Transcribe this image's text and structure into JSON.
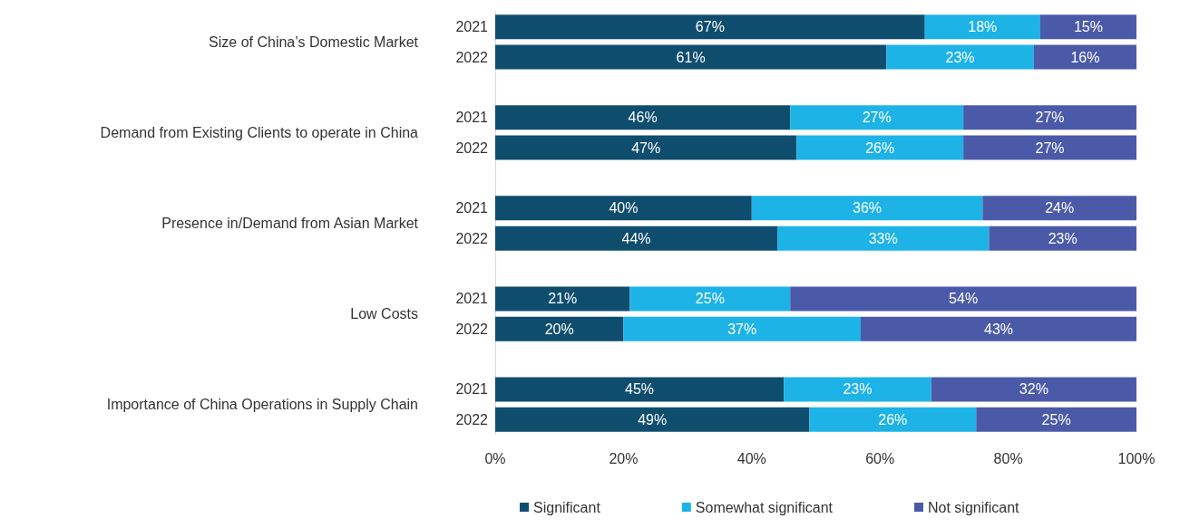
{
  "chart_data": {
    "type": "bar",
    "orientation": "horizontal",
    "stacked": true,
    "categories": [
      "2021",
      "2022",
      null,
      "2021",
      "2022",
      null,
      "2021",
      "2022",
      null,
      "2021",
      "2022",
      null,
      "2021",
      "2022"
    ],
    "series": [
      {
        "name": "Significant",
        "color": "#0e4d6e",
        "values": [
          67,
          61,
          null,
          46,
          47,
          null,
          40,
          44,
          null,
          21,
          20,
          null,
          45,
          49
        ],
        "value_labels": [
          "67%",
          "61%",
          null,
          "46%",
          "47%",
          null,
          "40%",
          "44%",
          null,
          "21%",
          "20%",
          null,
          "45%",
          "49%"
        ]
      },
      {
        "name": "Somewhat significant",
        "color": "#1db3e6",
        "values": [
          18,
          23,
          null,
          27,
          26,
          null,
          36,
          33,
          null,
          25,
          37,
          null,
          23,
          26
        ],
        "value_labels": [
          "18%",
          "23%",
          null,
          "27%",
          "26%",
          null,
          "36%",
          "33%",
          null,
          "25%",
          "37%",
          null,
          "23%",
          "26%"
        ]
      },
      {
        "name": "Not significant",
        "color": "#4b5aa8",
        "values": [
          15,
          16,
          null,
          27,
          27,
          null,
          24,
          23,
          null,
          54,
          43,
          null,
          32,
          25
        ],
        "value_labels": [
          "15%",
          "16%",
          null,
          "27%",
          "27%",
          null,
          "24%",
          "23%",
          null,
          "54%",
          "43%",
          null,
          "32%",
          "25%"
        ]
      }
    ],
    "annotations": [
      "Size of China’s Domestic Market",
      "Demand from Existing Clients to operate in China",
      "Presence in/Demand from Asian Market",
      "Low Costs",
      "Importance of China Operations in Supply Chain"
    ],
    "xlim": [
      0,
      100
    ],
    "xticks": [
      {
        "value": 0,
        "label": "0%"
      },
      {
        "value": 20,
        "label": "20%"
      },
      {
        "value": 40,
        "label": "40%"
      },
      {
        "value": 60,
        "label": "60%"
      },
      {
        "value": 80,
        "label": "80%"
      },
      {
        "value": 100,
        "label": "100%"
      }
    ],
    "grid": false,
    "legend": "bottom"
  }
}
